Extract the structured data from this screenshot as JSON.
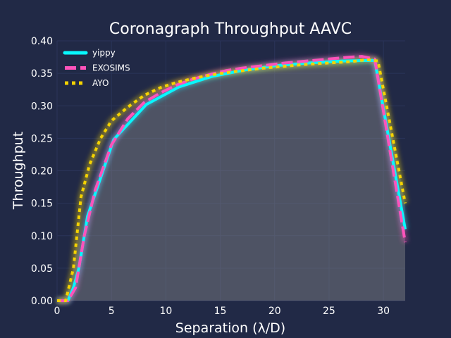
{
  "chart_data": {
    "type": "line",
    "title": "Coronagraph Throughput AAVC",
    "xlabel": "Separation (λ/D)",
    "ylabel": "Throughput",
    "xlim": [
      0,
      32
    ],
    "ylim": [
      0,
      0.4
    ],
    "xticks": [
      0,
      5,
      10,
      15,
      20,
      25,
      30
    ],
    "yticks": [
      0.0,
      0.05,
      0.1,
      0.15,
      0.2,
      0.25,
      0.3,
      0.35,
      0.4
    ],
    "ytick_labels": [
      "0.00",
      "0.05",
      "0.10",
      "0.15",
      "0.20",
      "0.25",
      "0.30",
      "0.35",
      "0.40"
    ],
    "xtick_labels": [
      "0",
      "5",
      "10",
      "15",
      "20",
      "25",
      "30"
    ],
    "grid": true,
    "legend_position": "top-left",
    "series": [
      {
        "name": "yippy",
        "color": "#08F7FE",
        "style": "solid",
        "x": [
          0,
          1.0,
          1.5,
          2.0,
          2.8,
          5.2,
          8.2,
          11.2,
          14.2,
          17.2,
          20.2,
          23.2,
          26.2,
          29.2,
          32.0
        ],
        "y": [
          0,
          0.0,
          0.02,
          0.05,
          0.13,
          0.248,
          0.302,
          0.329,
          0.345,
          0.355,
          0.362,
          0.366,
          0.369,
          0.37,
          0.11
        ]
      },
      {
        "name": "EXOSIMS",
        "color": "#FE53BB",
        "style": "dashed",
        "x": [
          0,
          1.0,
          1.7,
          2.5,
          3.5,
          5.0,
          6.5,
          8.0,
          9.5,
          11.0,
          12.5,
          14.0,
          15.5,
          17.0,
          19.0,
          21.0,
          23.0,
          25.0,
          27.0,
          28.0,
          29.2,
          32.0
        ],
        "y": [
          0,
          0.0,
          0.02,
          0.1,
          0.17,
          0.24,
          0.28,
          0.305,
          0.32,
          0.332,
          0.341,
          0.348,
          0.354,
          0.358,
          0.362,
          0.366,
          0.369,
          0.372,
          0.375,
          0.376,
          0.372,
          0.09
        ]
      },
      {
        "name": "AYO",
        "color": "#F5D300",
        "style": "dotted",
        "x": [
          0,
          0.8,
          1.5,
          2.2,
          3.0,
          4.0,
          5.0,
          6.5,
          8.0,
          9.5,
          11.0,
          12.5,
          14.0,
          15.5,
          17.0,
          19.0,
          21.0,
          23.0,
          25.0,
          27.0,
          28.5,
          29.5,
          32.0
        ],
        "y": [
          0,
          0.0,
          0.05,
          0.16,
          0.21,
          0.25,
          0.277,
          0.298,
          0.316,
          0.328,
          0.336,
          0.342,
          0.347,
          0.351,
          0.354,
          0.358,
          0.361,
          0.364,
          0.366,
          0.368,
          0.371,
          0.369,
          0.15
        ]
      }
    ]
  }
}
